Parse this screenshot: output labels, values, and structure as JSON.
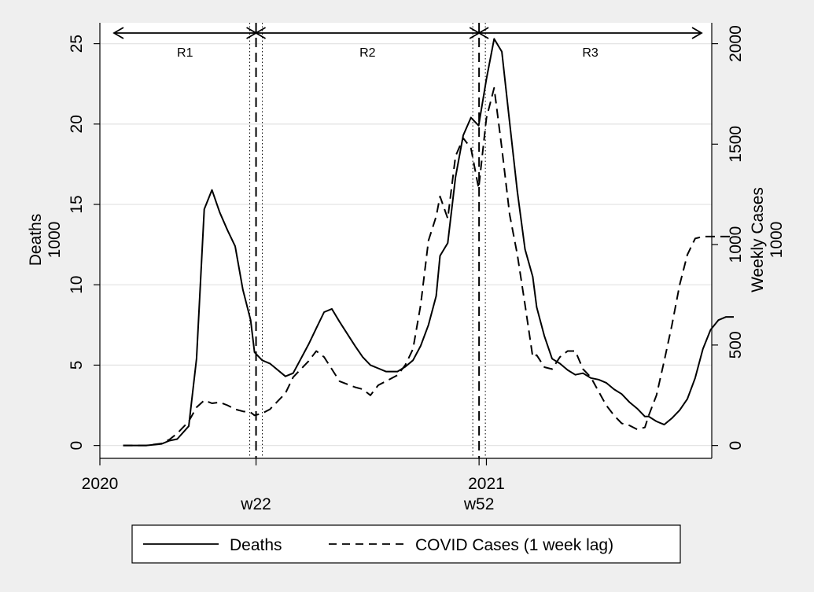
{
  "chart_data": {
    "type": "line",
    "xlim": [
      2020.0,
      2021.583
    ],
    "x_ticks": [
      {
        "value": 2020.0,
        "label": "2020"
      },
      {
        "value": 2021.0,
        "label": "2021"
      }
    ],
    "markers": [
      {
        "value": 2020.404,
        "label": "w22"
      },
      {
        "value": 2020.981,
        "label": "w52"
      }
    ],
    "left_axis": {
      "title_lines": [
        "Deaths",
        "1000"
      ],
      "ylim": [
        -0.8,
        26.3
      ],
      "ticks": [
        0,
        5,
        10,
        15,
        20,
        25
      ]
    },
    "right_axis": {
      "title_lines": [
        "Weekly Cases",
        "1000"
      ],
      "ylim": [
        -64,
        2104
      ],
      "ticks": [
        0,
        500,
        1000,
        1500,
        2000
      ]
    },
    "regions": [
      {
        "label": "R1",
        "start": 2020.0,
        "end": 2020.404
      },
      {
        "label": "R2",
        "start": 2020.404,
        "end": 2020.981
      },
      {
        "label": "R3",
        "start": 2020.981,
        "end": 2021.65
      }
    ],
    "legend_position": "bottom",
    "grid": true,
    "series": [
      {
        "name": "Deaths",
        "axis": "left",
        "style": "solid",
        "x": [
          2020.06,
          2020.08,
          2020.1,
          2020.12,
          2020.16,
          2020.18,
          2020.2,
          2020.23,
          2020.25,
          2020.27,
          2020.29,
          2020.31,
          2020.33,
          2020.35,
          2020.37,
          2020.39,
          2020.4,
          2020.42,
          2020.44,
          2020.48,
          2020.5,
          2020.54,
          2020.56,
          2020.58,
          2020.6,
          2020.62,
          2020.66,
          2020.68,
          2020.7,
          2020.72,
          2020.74,
          2020.77,
          2020.79,
          2020.81,
          2020.83,
          2020.85,
          2020.87,
          2020.88,
          2020.9,
          2020.92,
          2020.94,
          2020.96,
          2020.98,
          2021.0,
          2021.02,
          2021.04,
          2021.06,
          2021.08,
          2021.1,
          2021.12,
          2021.13,
          2021.15,
          2021.17,
          2021.19,
          2021.21,
          2021.23,
          2021.25,
          2021.27,
          2021.29,
          2021.31,
          2021.33,
          2021.35,
          2021.37,
          2021.39,
          2021.41,
          2021.42,
          2021.44,
          2021.46,
          2021.48,
          2021.5,
          2021.52,
          2021.54,
          2021.56,
          2021.58,
          2021.6,
          2021.62,
          2021.64
        ],
        "values": [
          0.0,
          0.0,
          0.0,
          0.0,
          0.1,
          0.3,
          0.4,
          1.2,
          5.4,
          14.7,
          15.9,
          14.5,
          13.4,
          12.4,
          9.7,
          7.8,
          5.8,
          5.3,
          5.1,
          4.3,
          4.5,
          6.3,
          7.3,
          8.3,
          8.5,
          7.7,
          6.2,
          5.5,
          5.0,
          4.8,
          4.6,
          4.6,
          4.9,
          5.3,
          6.2,
          7.5,
          9.3,
          11.8,
          12.6,
          16.7,
          19.3,
          20.4,
          19.9,
          22.8,
          25.3,
          24.5,
          20.1,
          15.8,
          12.2,
          10.5,
          8.6,
          6.8,
          5.4,
          5.1,
          4.7,
          4.4,
          4.5,
          4.2,
          4.1,
          3.9,
          3.5,
          3.2,
          2.7,
          2.3,
          1.8,
          1.8,
          1.5,
          1.3,
          1.7,
          2.2,
          2.9,
          4.2,
          6.0,
          7.2,
          7.8,
          8.0,
          8.0
        ]
      },
      {
        "name": "COVID Cases (1 week lag)",
        "axis": "right",
        "style": "dashed",
        "x": [
          2020.06,
          2020.08,
          2020.1,
          2020.12,
          2020.16,
          2020.18,
          2020.2,
          2020.23,
          2020.25,
          2020.27,
          2020.29,
          2020.31,
          2020.33,
          2020.35,
          2020.37,
          2020.39,
          2020.4,
          2020.42,
          2020.44,
          2020.48,
          2020.5,
          2020.54,
          2020.56,
          2020.58,
          2020.6,
          2020.62,
          2020.66,
          2020.68,
          2020.7,
          2020.72,
          2020.74,
          2020.77,
          2020.79,
          2020.81,
          2020.83,
          2020.85,
          2020.87,
          2020.88,
          2020.9,
          2020.92,
          2020.94,
          2020.96,
          2020.98,
          2021.0,
          2021.02,
          2021.04,
          2021.06,
          2021.08,
          2021.1,
          2021.12,
          2021.13,
          2021.15,
          2021.17,
          2021.19,
          2021.21,
          2021.23,
          2021.25,
          2021.27,
          2021.29,
          2021.31,
          2021.33,
          2021.35,
          2021.37,
          2021.39,
          2021.41,
          2021.42,
          2021.44,
          2021.46,
          2021.48,
          2021.5,
          2021.52,
          2021.54,
          2021.56,
          2021.58,
          2021.6,
          2021.62,
          2021.64
        ],
        "values": [
          0,
          0,
          0,
          0,
          10,
          30,
          60,
          120,
          190,
          225,
          210,
          215,
          200,
          180,
          170,
          165,
          150,
          160,
          180,
          260,
          340,
          420,
          470,
          440,
          380,
          320,
          290,
          280,
          250,
          300,
          320,
          350,
          400,
          480,
          700,
          1020,
          1140,
          1240,
          1130,
          1440,
          1530,
          1480,
          1280,
          1630,
          1780,
          1480,
          1150,
          950,
          700,
          440,
          450,
          390,
          380,
          440,
          470,
          470,
          380,
          340,
          270,
          200,
          150,
          110,
          100,
          80,
          90,
          150,
          250,
          420,
          600,
          800,
          950,
          1030,
          1040,
          1040,
          1040,
          1040,
          1040
        ]
      }
    ]
  }
}
